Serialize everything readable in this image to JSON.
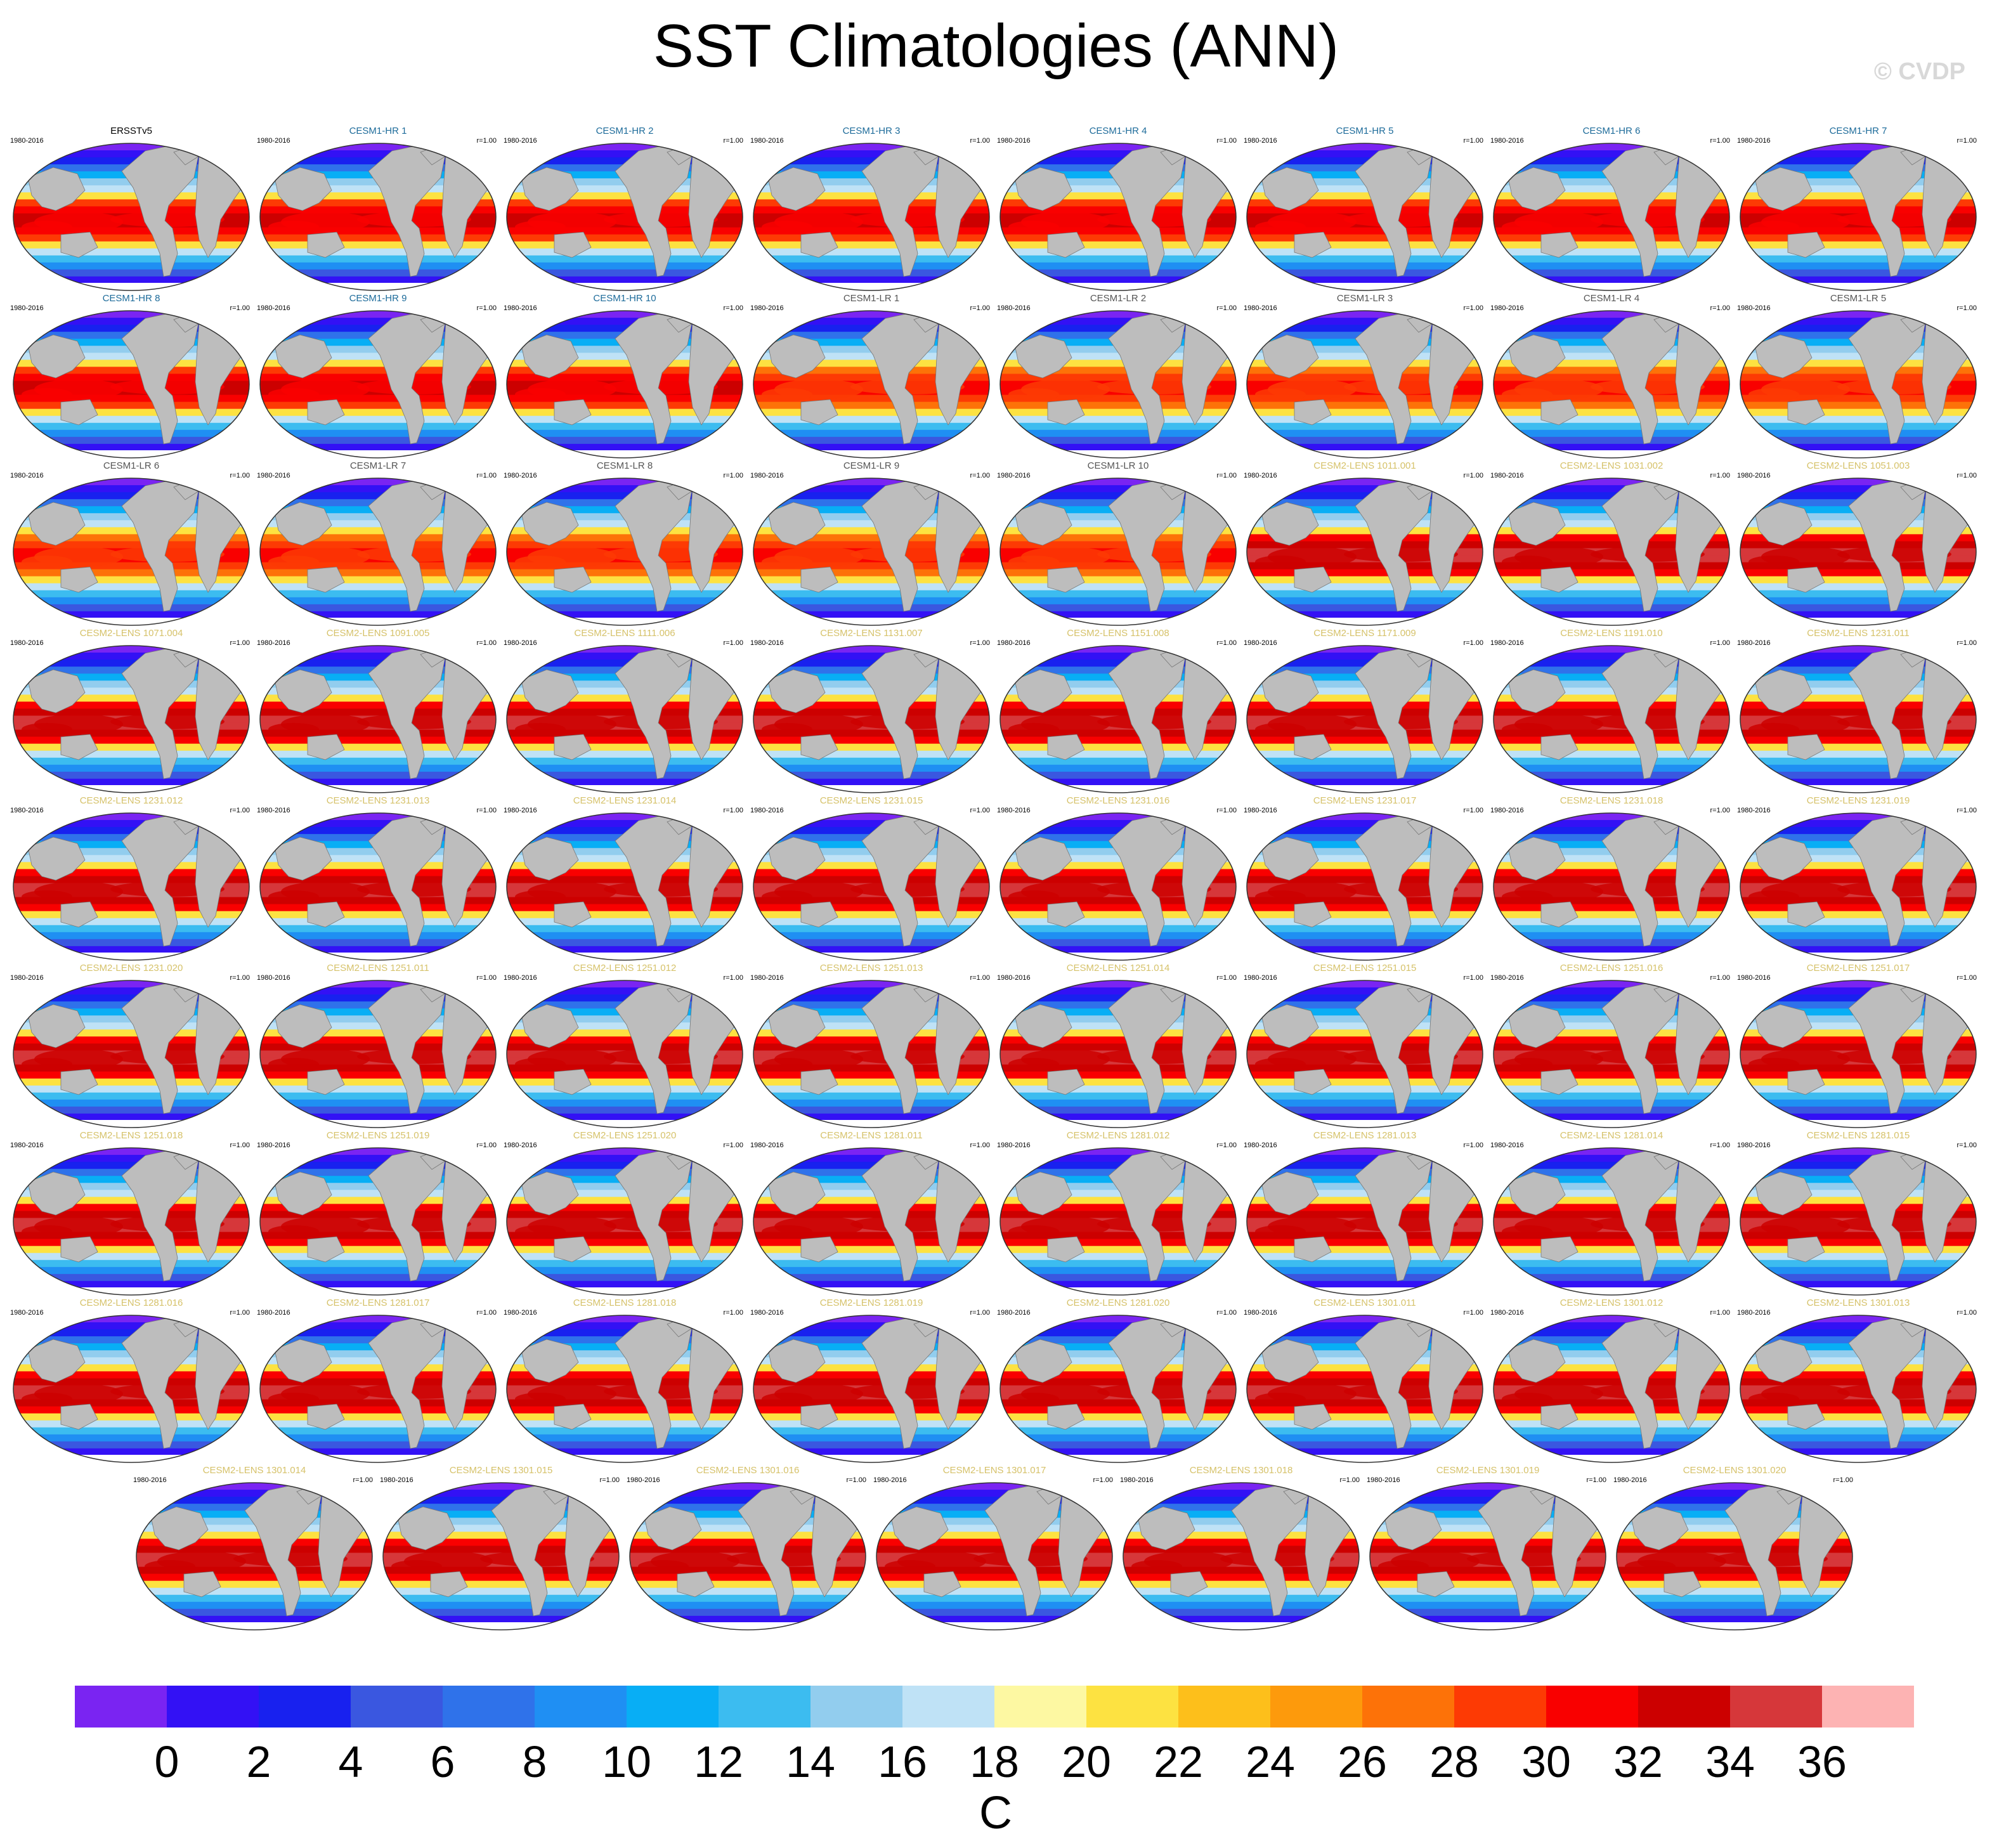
{
  "title": "SST Climatologies (ANN)",
  "copyright": "© CVDP",
  "colorbar": {
    "unit": "C",
    "tick_labels": [
      "0",
      "2",
      "4",
      "6",
      "8",
      "10",
      "12",
      "14",
      "16",
      "18",
      "20",
      "22",
      "24",
      "26",
      "28",
      "30",
      "32",
      "34",
      "36"
    ],
    "colors": [
      "#7a24f2",
      "#3311f5",
      "#1821ef",
      "#3a57e0",
      "#2f72ea",
      "#1f8ff3",
      "#08aef5",
      "#3cbcf0",
      "#92cdee",
      "#bfe2f6",
      "#fdf8a2",
      "#fde241",
      "#fdbf1b",
      "#fd9a0c",
      "#fd7208",
      "#fd3a04",
      "#f90000",
      "#cc0000",
      "#d6373a",
      "#fdb3b3"
    ]
  },
  "chart_data": {
    "type": "heatmap",
    "title": "SST Climatologies (ANN)",
    "variable": "SST",
    "season": "ANN",
    "unit": "C",
    "levels": [
      0,
      2,
      4,
      6,
      8,
      10,
      12,
      14,
      16,
      18,
      20,
      22,
      24,
      26,
      28,
      30,
      32,
      34,
      36
    ],
    "panels": [
      {
        "name": "ERSSTv5",
        "period": "1980-2016",
        "corr": "",
        "group": "obs"
      },
      {
        "name": "CESM1-HR 1",
        "period": "1980-2016",
        "corr": "r=1.00",
        "group": "hr"
      },
      {
        "name": "CESM1-HR 2",
        "period": "1980-2016",
        "corr": "r=1.00",
        "group": "hr"
      },
      {
        "name": "CESM1-HR 3",
        "period": "1980-2016",
        "corr": "r=1.00",
        "group": "hr"
      },
      {
        "name": "CESM1-HR 4",
        "period": "1980-2016",
        "corr": "r=1.00",
        "group": "hr"
      },
      {
        "name": "CESM1-HR 5",
        "period": "1980-2016",
        "corr": "r=1.00",
        "group": "hr"
      },
      {
        "name": "CESM1-HR 6",
        "period": "1980-2016",
        "corr": "r=1.00",
        "group": "hr"
      },
      {
        "name": "CESM1-HR 7",
        "period": "1980-2016",
        "corr": "r=1.00",
        "group": "hr"
      },
      {
        "name": "CESM1-HR 8",
        "period": "1980-2016",
        "corr": "r=1.00",
        "group": "hr"
      },
      {
        "name": "CESM1-HR 9",
        "period": "1980-2016",
        "corr": "r=1.00",
        "group": "hr"
      },
      {
        "name": "CESM1-HR 10",
        "period": "1980-2016",
        "corr": "r=1.00",
        "group": "hr"
      },
      {
        "name": "CESM1-LR 1",
        "period": "1980-2016",
        "corr": "r=1.00",
        "group": "lr"
      },
      {
        "name": "CESM1-LR 2",
        "period": "1980-2016",
        "corr": "r=1.00",
        "group": "lr"
      },
      {
        "name": "CESM1-LR 3",
        "period": "1980-2016",
        "corr": "r=1.00",
        "group": "lr"
      },
      {
        "name": "CESM1-LR 4",
        "period": "1980-2016",
        "corr": "r=1.00",
        "group": "lr"
      },
      {
        "name": "CESM1-LR 5",
        "period": "1980-2016",
        "corr": "r=1.00",
        "group": "lr"
      },
      {
        "name": "CESM1-LR 6",
        "period": "1980-2016",
        "corr": "r=1.00",
        "group": "lr"
      },
      {
        "name": "CESM1-LR 7",
        "period": "1980-2016",
        "corr": "r=1.00",
        "group": "lr"
      },
      {
        "name": "CESM1-LR 8",
        "period": "1980-2016",
        "corr": "r=1.00",
        "group": "lr"
      },
      {
        "name": "CESM1-LR 9",
        "period": "1980-2016",
        "corr": "r=1.00",
        "group": "lr"
      },
      {
        "name": "CESM1-LR 10",
        "period": "1980-2016",
        "corr": "r=1.00",
        "group": "lr"
      },
      {
        "name": "CESM2-LENS 1011.001",
        "period": "1980-2016",
        "corr": "r=1.00",
        "group": "lens"
      },
      {
        "name": "CESM2-LENS 1031.002",
        "period": "1980-2016",
        "corr": "r=1.00",
        "group": "lens"
      },
      {
        "name": "CESM2-LENS 1051.003",
        "period": "1980-2016",
        "corr": "r=1.00",
        "group": "lens"
      },
      {
        "name": "CESM2-LENS 1071.004",
        "period": "1980-2016",
        "corr": "r=1.00",
        "group": "lens"
      },
      {
        "name": "CESM2-LENS 1091.005",
        "period": "1980-2016",
        "corr": "r=1.00",
        "group": "lens"
      },
      {
        "name": "CESM2-LENS 1111.006",
        "period": "1980-2016",
        "corr": "r=1.00",
        "group": "lens"
      },
      {
        "name": "CESM2-LENS 1131.007",
        "period": "1980-2016",
        "corr": "r=1.00",
        "group": "lens"
      },
      {
        "name": "CESM2-LENS 1151.008",
        "period": "1980-2016",
        "corr": "r=1.00",
        "group": "lens"
      },
      {
        "name": "CESM2-LENS 1171.009",
        "period": "1980-2016",
        "corr": "r=1.00",
        "group": "lens"
      },
      {
        "name": "CESM2-LENS 1191.010",
        "period": "1980-2016",
        "corr": "r=1.00",
        "group": "lens"
      },
      {
        "name": "CESM2-LENS 1231.011",
        "period": "1980-2016",
        "corr": "r=1.00",
        "group": "lens"
      },
      {
        "name": "CESM2-LENS 1231.012",
        "period": "1980-2016",
        "corr": "r=1.00",
        "group": "lens"
      },
      {
        "name": "CESM2-LENS 1231.013",
        "period": "1980-2016",
        "corr": "r=1.00",
        "group": "lens"
      },
      {
        "name": "CESM2-LENS 1231.014",
        "period": "1980-2016",
        "corr": "r=1.00",
        "group": "lens"
      },
      {
        "name": "CESM2-LENS 1231.015",
        "period": "1980-2016",
        "corr": "r=1.00",
        "group": "lens"
      },
      {
        "name": "CESM2-LENS 1231.016",
        "period": "1980-2016",
        "corr": "r=1.00",
        "group": "lens"
      },
      {
        "name": "CESM2-LENS 1231.017",
        "period": "1980-2016",
        "corr": "r=1.00",
        "group": "lens"
      },
      {
        "name": "CESM2-LENS 1231.018",
        "period": "1980-2016",
        "corr": "r=1.00",
        "group": "lens"
      },
      {
        "name": "CESM2-LENS 1231.019",
        "period": "1980-2016",
        "corr": "r=1.00",
        "group": "lens"
      },
      {
        "name": "CESM2-LENS 1231.020",
        "period": "1980-2016",
        "corr": "r=1.00",
        "group": "lens"
      },
      {
        "name": "CESM2-LENS 1251.011",
        "period": "1980-2016",
        "corr": "r=1.00",
        "group": "lens"
      },
      {
        "name": "CESM2-LENS 1251.012",
        "period": "1980-2016",
        "corr": "r=1.00",
        "group": "lens"
      },
      {
        "name": "CESM2-LENS 1251.013",
        "period": "1980-2016",
        "corr": "r=1.00",
        "group": "lens"
      },
      {
        "name": "CESM2-LENS 1251.014",
        "period": "1980-2016",
        "corr": "r=1.00",
        "group": "lens"
      },
      {
        "name": "CESM2-LENS 1251.015",
        "period": "1980-2016",
        "corr": "r=1.00",
        "group": "lens"
      },
      {
        "name": "CESM2-LENS 1251.016",
        "period": "1980-2016",
        "corr": "r=1.00",
        "group": "lens"
      },
      {
        "name": "CESM2-LENS 1251.017",
        "period": "1980-2016",
        "corr": "r=1.00",
        "group": "lens"
      },
      {
        "name": "CESM2-LENS 1251.018",
        "period": "1980-2016",
        "corr": "r=1.00",
        "group": "lens"
      },
      {
        "name": "CESM2-LENS 1251.019",
        "period": "1980-2016",
        "corr": "r=1.00",
        "group": "lens"
      },
      {
        "name": "CESM2-LENS 1251.020",
        "period": "1980-2016",
        "corr": "r=1.00",
        "group": "lens"
      },
      {
        "name": "CESM2-LENS 1281.011",
        "period": "1980-2016",
        "corr": "r=1.00",
        "group": "lens"
      },
      {
        "name": "CESM2-LENS 1281.012",
        "period": "1980-2016",
        "corr": "r=1.00",
        "group": "lens"
      },
      {
        "name": "CESM2-LENS 1281.013",
        "period": "1980-2016",
        "corr": "r=1.00",
        "group": "lens"
      },
      {
        "name": "CESM2-LENS 1281.014",
        "period": "1980-2016",
        "corr": "r=1.00",
        "group": "lens"
      },
      {
        "name": "CESM2-LENS 1281.015",
        "period": "1980-2016",
        "corr": "r=1.00",
        "group": "lens"
      },
      {
        "name": "CESM2-LENS 1281.016",
        "period": "1980-2016",
        "corr": "r=1.00",
        "group": "lens"
      },
      {
        "name": "CESM2-LENS 1281.017",
        "period": "1980-2016",
        "corr": "r=1.00",
        "group": "lens"
      },
      {
        "name": "CESM2-LENS 1281.018",
        "period": "1980-2016",
        "corr": "r=1.00",
        "group": "lens"
      },
      {
        "name": "CESM2-LENS 1281.019",
        "period": "1980-2016",
        "corr": "r=1.00",
        "group": "lens"
      },
      {
        "name": "CESM2-LENS 1281.020",
        "period": "1980-2016",
        "corr": "r=1.00",
        "group": "lens"
      },
      {
        "name": "CESM2-LENS 1301.011",
        "period": "1980-2016",
        "corr": "r=1.00",
        "group": "lens"
      },
      {
        "name": "CESM2-LENS 1301.012",
        "period": "1980-2016",
        "corr": "r=1.00",
        "group": "lens"
      },
      {
        "name": "CESM2-LENS 1301.013",
        "period": "1980-2016",
        "corr": "r=1.00",
        "group": "lens"
      },
      {
        "name": "CESM2-LENS 1301.014",
        "period": "1980-2016",
        "corr": "r=1.00",
        "group": "lens"
      },
      {
        "name": "CESM2-LENS 1301.015",
        "period": "1980-2016",
        "corr": "r=1.00",
        "group": "lens"
      },
      {
        "name": "CESM2-LENS 1301.016",
        "period": "1980-2016",
        "corr": "r=1.00",
        "group": "lens"
      },
      {
        "name": "CESM2-LENS 1301.017",
        "period": "1980-2016",
        "corr": "r=1.00",
        "group": "lens"
      },
      {
        "name": "CESM2-LENS 1301.018",
        "period": "1980-2016",
        "corr": "r=1.00",
        "group": "lens"
      },
      {
        "name": "CESM2-LENS 1301.019",
        "period": "1980-2016",
        "corr": "r=1.00",
        "group": "lens"
      },
      {
        "name": "CESM2-LENS 1301.020",
        "period": "1980-2016",
        "corr": "r=1.00",
        "group": "lens"
      }
    ]
  },
  "group_colors": {
    "obs": "#000000",
    "hr": "#1d6b9a",
    "lr": "#555555",
    "lens": "#d6c26a"
  },
  "land_color": "#bdbdbd"
}
